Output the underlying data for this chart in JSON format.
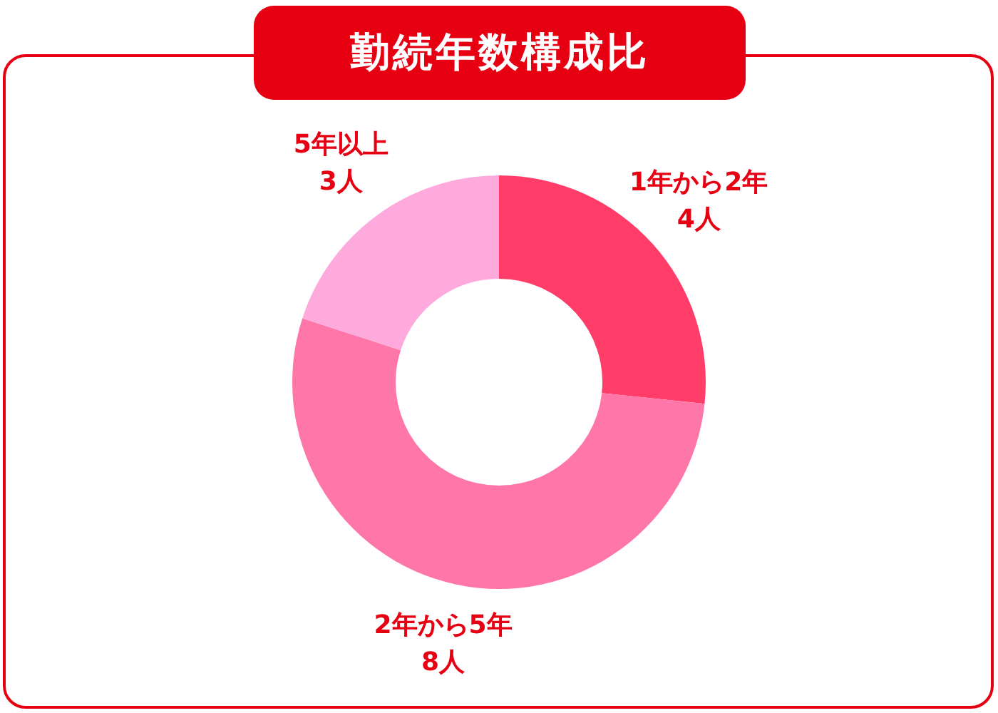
{
  "chart_data": {
    "type": "donut",
    "title": "勤続年数構成比",
    "categories": [
      "1年から2年",
      "2年から5年",
      "5年以上"
    ],
    "values": [
      4,
      8,
      3
    ],
    "value_labels": [
      "4人",
      "8人",
      "3人"
    ],
    "colors": [
      "#ff3d68",
      "#ff77a8",
      "#ffaadd"
    ]
  }
}
